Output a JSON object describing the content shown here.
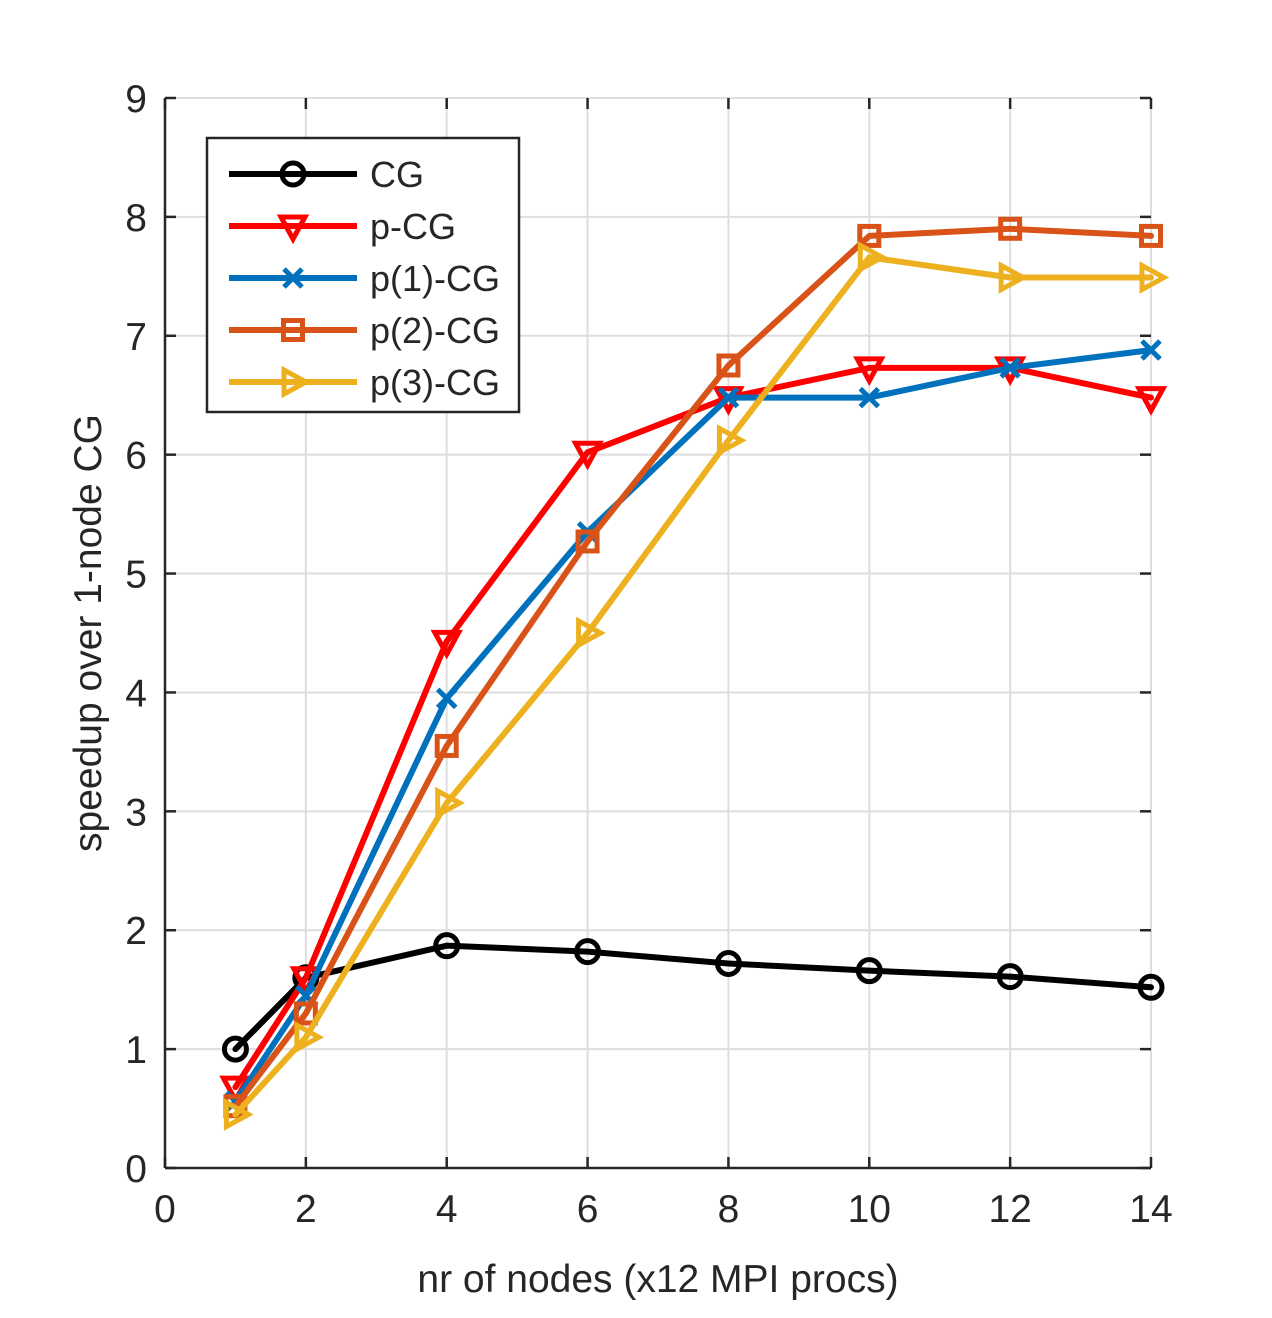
{
  "chart_data": {
    "type": "line",
    "title": "",
    "xlabel": "nr of nodes (x12 MPI procs)",
    "ylabel": "speedup over 1-node CG",
    "xlim": [
      0,
      14
    ],
    "ylim": [
      0,
      9
    ],
    "xticks": [
      0,
      2,
      4,
      6,
      8,
      10,
      12,
      14
    ],
    "yticks": [
      0,
      1,
      2,
      3,
      4,
      5,
      6,
      7,
      8,
      9
    ],
    "xtick_labels": [
      "0",
      "2",
      "4",
      "6",
      "8",
      "10",
      "12",
      "14"
    ],
    "ytick_labels": [
      "0",
      "1",
      "2",
      "3",
      "4",
      "5",
      "6",
      "7",
      "8",
      "9"
    ],
    "grid": true,
    "legend_position": "top-left",
    "x": [
      1,
      2,
      4,
      6,
      8,
      10,
      12,
      14
    ],
    "series": [
      {
        "name": "CG",
        "color": "#000000",
        "marker": "circle",
        "values": [
          1.0,
          1.6,
          1.87,
          1.82,
          1.72,
          1.66,
          1.61,
          1.52
        ]
      },
      {
        "name": "p-CG",
        "color": "#ff0000",
        "marker": "triangle-down",
        "values": [
          0.68,
          1.6,
          4.43,
          6.02,
          6.48,
          6.73,
          6.73,
          6.48
        ]
      },
      {
        "name": "p(1)-CG",
        "color": "#0072bd",
        "marker": "x",
        "values": [
          0.56,
          1.45,
          3.95,
          5.35,
          6.48,
          6.48,
          6.73,
          6.88
        ]
      },
      {
        "name": "p(2)-CG",
        "color": "#d95319",
        "marker": "square",
        "values": [
          0.52,
          1.3,
          3.55,
          5.27,
          6.75,
          7.84,
          7.9,
          7.84
        ]
      },
      {
        "name": "p(3)-CG",
        "color": "#edb120",
        "marker": "triangle-right",
        "values": [
          0.45,
          1.1,
          3.07,
          4.5,
          6.12,
          7.66,
          7.49,
          7.49
        ]
      }
    ]
  }
}
